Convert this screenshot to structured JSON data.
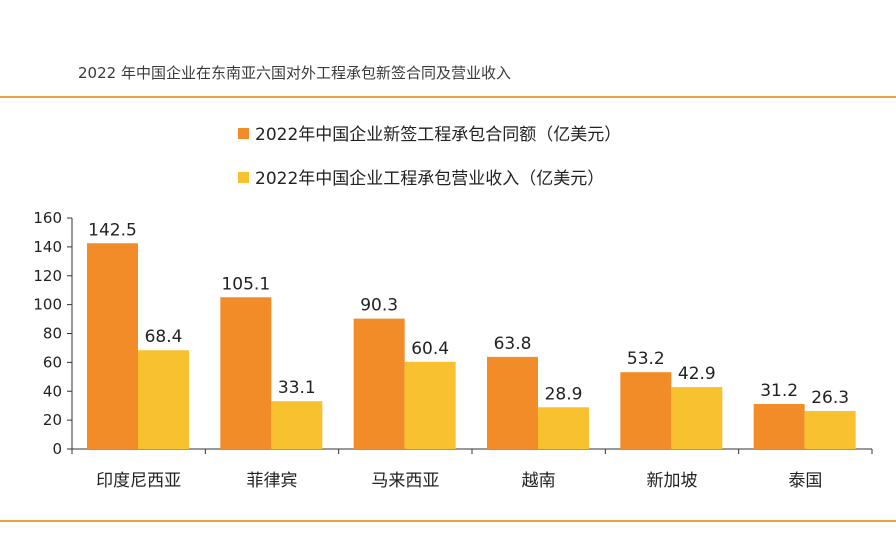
{
  "title": "2022 年中国企业在东南亚六国对外工程承包新签合同及营业收入",
  "colors": {
    "accent_line": "#f0a042",
    "series1": "#f28c28",
    "series2": "#f7c12f",
    "axis": "#333333"
  },
  "chart_data": {
    "type": "bar",
    "title": "",
    "xlabel": "",
    "ylabel": "",
    "ylim": [
      0,
      160
    ],
    "yticks": [
      0,
      20,
      40,
      60,
      80,
      100,
      120,
      140,
      160
    ],
    "grid": false,
    "legend_position": "top",
    "categories": [
      "印度尼西亚",
      "菲律宾",
      "马来西亚",
      "越南",
      "新加坡",
      "泰国"
    ],
    "series": [
      {
        "name": "2022年中国企业新签工程承包合同额（亿美元）",
        "values": [
          142.5,
          105.1,
          90.3,
          63.8,
          53.2,
          31.2
        ],
        "labels": [
          "142.5",
          "105.1",
          "90.3",
          "63.8",
          "53.2",
          "31.2"
        ]
      },
      {
        "name": "2022年中国企业工程承包营业收入（亿美元）",
        "values": [
          68.4,
          33.1,
          60.4,
          28.9,
          42.9,
          26.3
        ],
        "labels": [
          "68.4",
          "33.1",
          "60.4",
          "28.9",
          "42.9",
          "26.3"
        ]
      }
    ]
  }
}
